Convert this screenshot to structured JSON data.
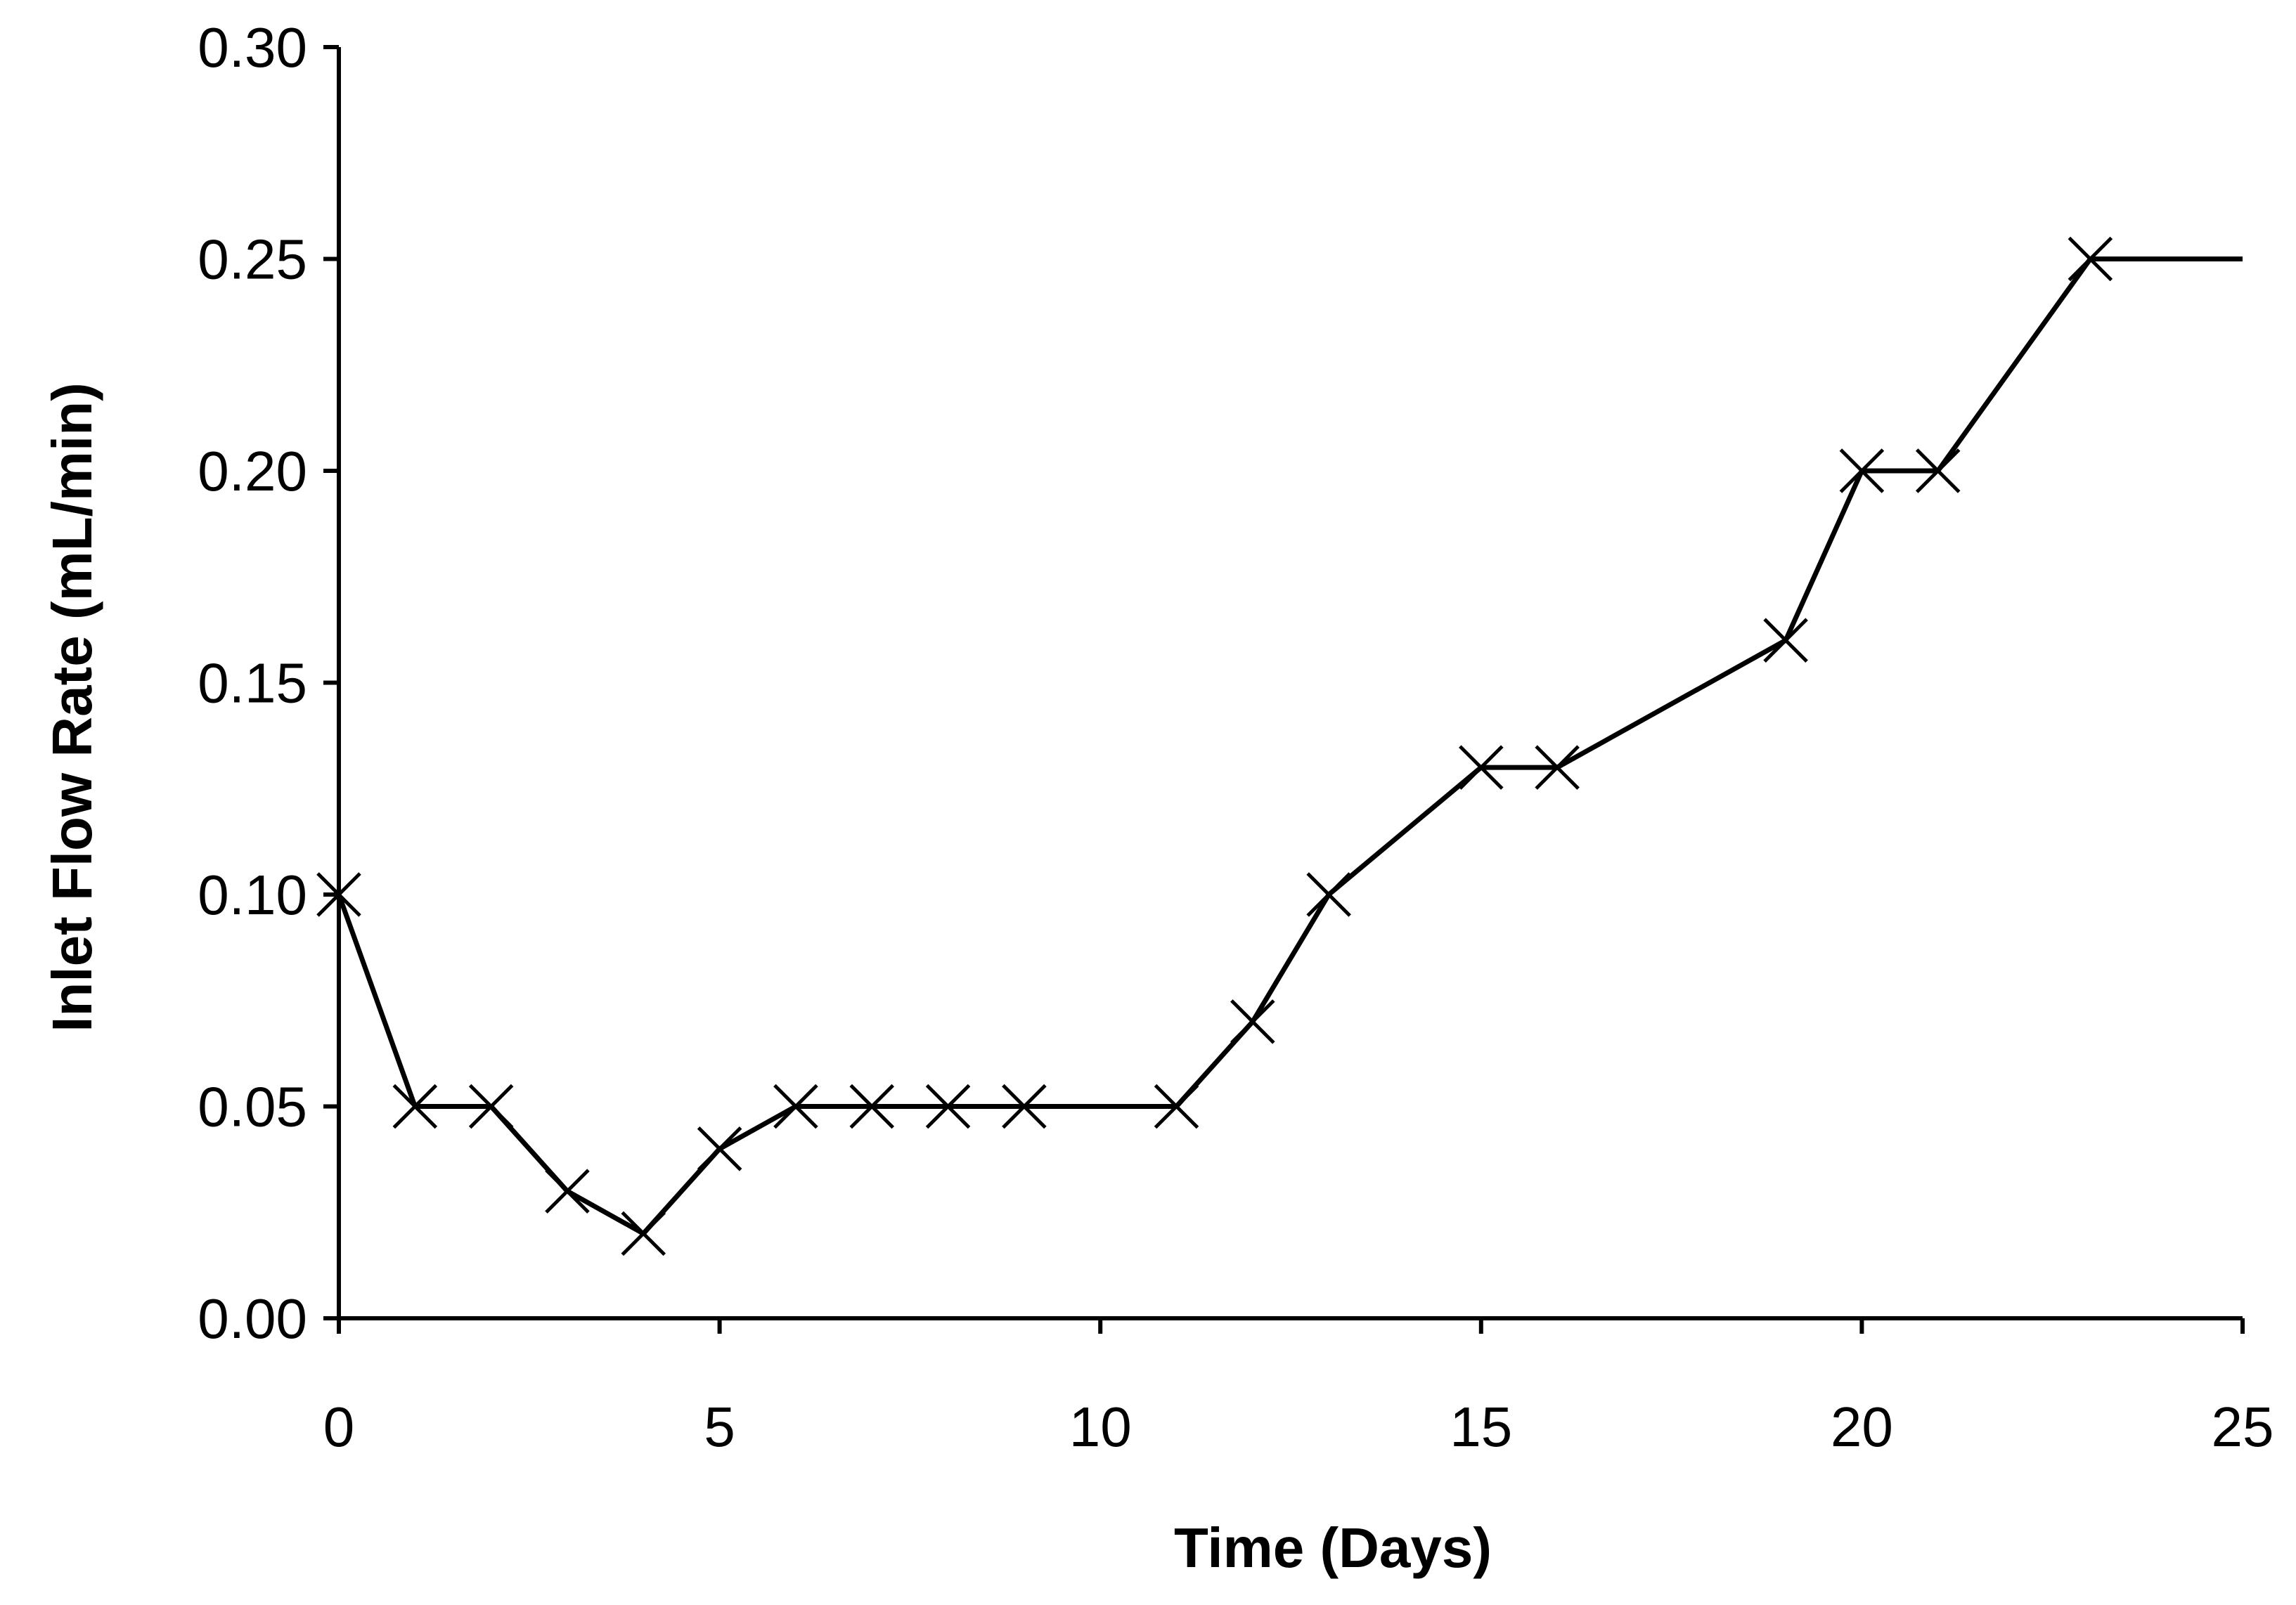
{
  "chart_data": {
    "type": "line",
    "title": "",
    "xlabel": "Time (Days)",
    "ylabel": "Inlet Flow Rate (mL/min)",
    "xlim": [
      0,
      25
    ],
    "ylim": [
      0,
      0.3
    ],
    "x_ticks": [
      0,
      5,
      10,
      15,
      20,
      25
    ],
    "x_tick_labels": [
      "0",
      "5",
      "10",
      "15",
      "20",
      "25"
    ],
    "y_ticks": [
      0,
      0.05,
      0.1,
      0.15,
      0.2,
      0.25,
      0.3
    ],
    "y_tick_labels": [
      "0.00",
      "0.05",
      "0.10",
      "0.15",
      "0.20",
      "0.25",
      "0.30"
    ],
    "grid": false,
    "legend": "none",
    "series": [
      {
        "name": "Inlet Flow Rate",
        "marker": "x",
        "color": "#000000",
        "x": [
          0,
          1,
          2,
          3,
          4,
          5,
          6,
          7,
          8,
          9,
          11,
          12,
          13,
          15,
          16,
          19,
          20,
          21,
          23
        ],
        "y": [
          0.1,
          0.05,
          0.05,
          0.03,
          0.02,
          0.04,
          0.05,
          0.05,
          0.05,
          0.05,
          0.05,
          0.07,
          0.1,
          0.13,
          0.13,
          0.16,
          0.2,
          0.2,
          0.25
        ],
        "line_extension": {
          "x": [
            23,
            25
          ],
          "y": [
            0.25,
            0.25
          ]
        }
      }
    ]
  }
}
